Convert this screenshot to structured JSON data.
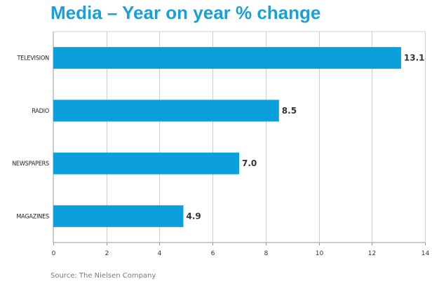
{
  "chart_data": {
    "type": "bar",
    "orientation": "horizontal",
    "title": "Media – Year on year % change",
    "categories": [
      "TELEVISION",
      "RADIO",
      "NEWSPAPERS",
      "MAGAZINES"
    ],
    "values": [
      13.1,
      8.5,
      7.0,
      4.9
    ],
    "value_labels": [
      "13.1",
      "8.5",
      "7.0",
      "4.9"
    ],
    "xlim": [
      0,
      14
    ],
    "xticks": [
      0,
      2,
      4,
      6,
      8,
      10,
      12,
      14
    ],
    "xlabel": "",
    "ylabel": "",
    "grid": true,
    "bar_color": "#0ba0db",
    "title_color": "#1a9fd8",
    "source": "Source: The Nielsen Company"
  }
}
